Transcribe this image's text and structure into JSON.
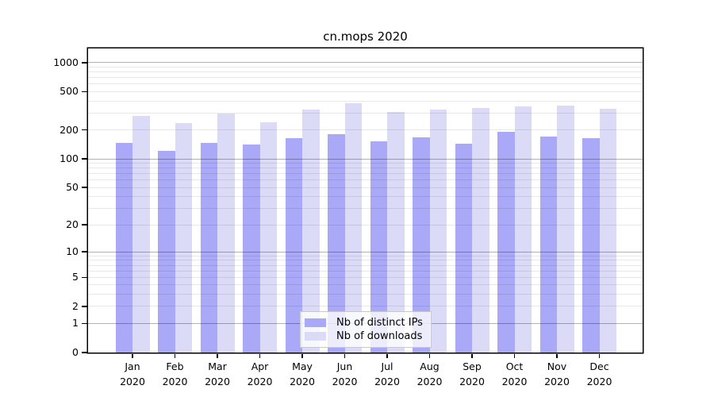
{
  "chart_data": {
    "type": "bar",
    "title": "cn.mops 2020",
    "categories": [
      "Jan",
      "Feb",
      "Mar",
      "Apr",
      "May",
      "Jun",
      "Jul",
      "Aug",
      "Sep",
      "Oct",
      "Nov",
      "Dec"
    ],
    "x_sublabel": "2020",
    "series": [
      {
        "name": "Nb of distinct IPs",
        "color": "#a9a9f7",
        "values": [
          146,
          120,
          146,
          142,
          164,
          181,
          153,
          166,
          143,
          193,
          170,
          164
        ]
      },
      {
        "name": "Nb of downloads",
        "color": "#dbdbf8",
        "values": [
          278,
          235,
          296,
          242,
          326,
          382,
          306,
          326,
          336,
          354,
          355,
          334
        ]
      }
    ],
    "y_ticks": [
      0,
      1,
      2,
      5,
      10,
      20,
      50,
      100,
      200,
      500,
      1000
    ],
    "scale": "log1p",
    "ylim": [
      0,
      1400
    ],
    "grid": {
      "minor_color": "rgba(0,0,0,0.09)",
      "major_color": "rgba(0,0,0,0.30)",
      "major_at": [
        1,
        10,
        100,
        1000
      ]
    },
    "legend_position": "bottom-center",
    "axis_color": "#000000",
    "background_color": "#ffffff"
  }
}
